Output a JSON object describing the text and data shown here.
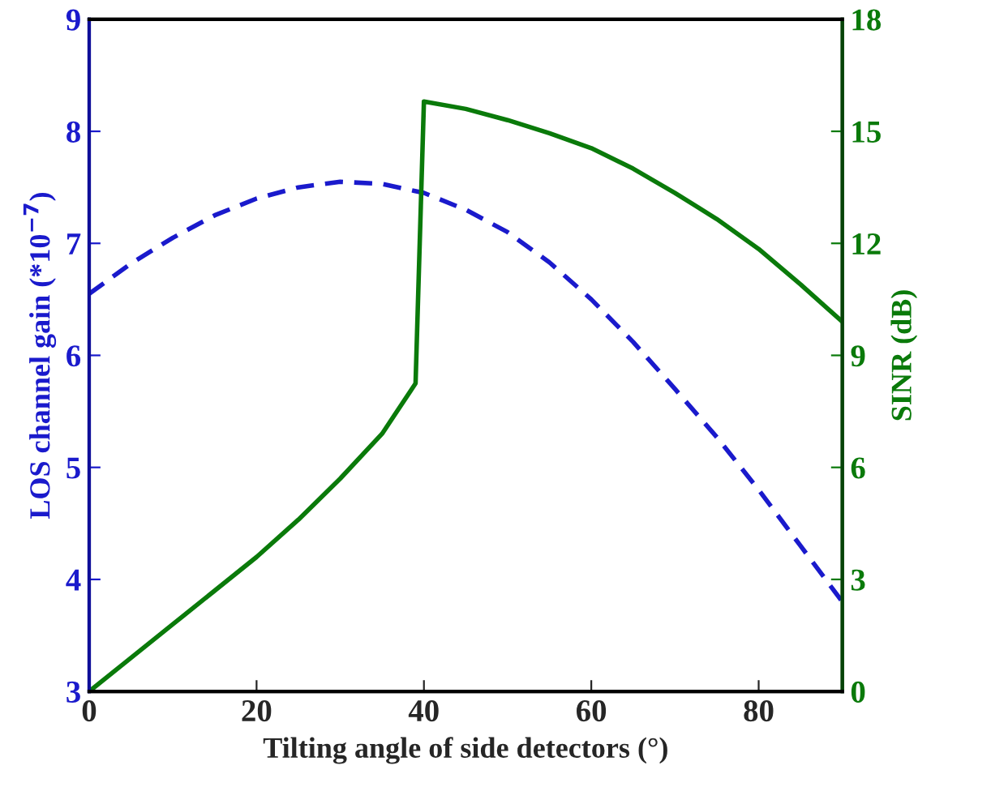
{
  "chart_data": {
    "type": "line",
    "xlabel": "Tilting angle of side detectors (°)",
    "ylabel": "LOS channel gain (*10$^{−7}$)",
    "y2label": "SINR (dB)",
    "series": [
      {
        "color": "#1a1acc",
        "line_style": "dashed",
        "x": [
          0,
          5,
          10,
          15,
          20,
          25,
          30,
          35,
          40,
          45,
          50,
          55,
          60,
          65,
          70,
          75,
          80,
          85,
          90
        ],
        "values": [
          6.55,
          6.82,
          7.05,
          7.25,
          7.4,
          7.5,
          7.55,
          7.53,
          7.45,
          7.3,
          7.1,
          6.83,
          6.5,
          6.12,
          5.7,
          5.27,
          4.8,
          4.3,
          3.8
        ]
      },
      {
        "color": "#0a7a0a",
        "line_style": "solid",
        "axis": "y2",
        "x": [
          0,
          5,
          10,
          15,
          20,
          25,
          30,
          35,
          39,
          40,
          45,
          50,
          55,
          60,
          65,
          70,
          75,
          80,
          85,
          90
        ],
        "values": [
          0,
          0.9,
          1.8,
          2.7,
          3.6,
          4.6,
          5.7,
          6.9,
          8.25,
          15.8,
          15.6,
          15.3,
          14.95,
          14.55,
          14.0,
          13.35,
          12.65,
          11.85,
          10.9,
          9.9
        ]
      }
    ],
    "xlim": [
      0,
      90
    ],
    "xticks": [
      0,
      20,
      40,
      60,
      80
    ],
    "ylim": [
      3,
      9
    ],
    "yticks": [
      3,
      4,
      5,
      6,
      7,
      8,
      9
    ],
    "y2lim": [
      0,
      18
    ],
    "y2ticks": [
      0,
      3,
      6,
      9,
      12,
      15,
      18
    ],
    "grid": false,
    "legend": false,
    "marker": "none"
  }
}
